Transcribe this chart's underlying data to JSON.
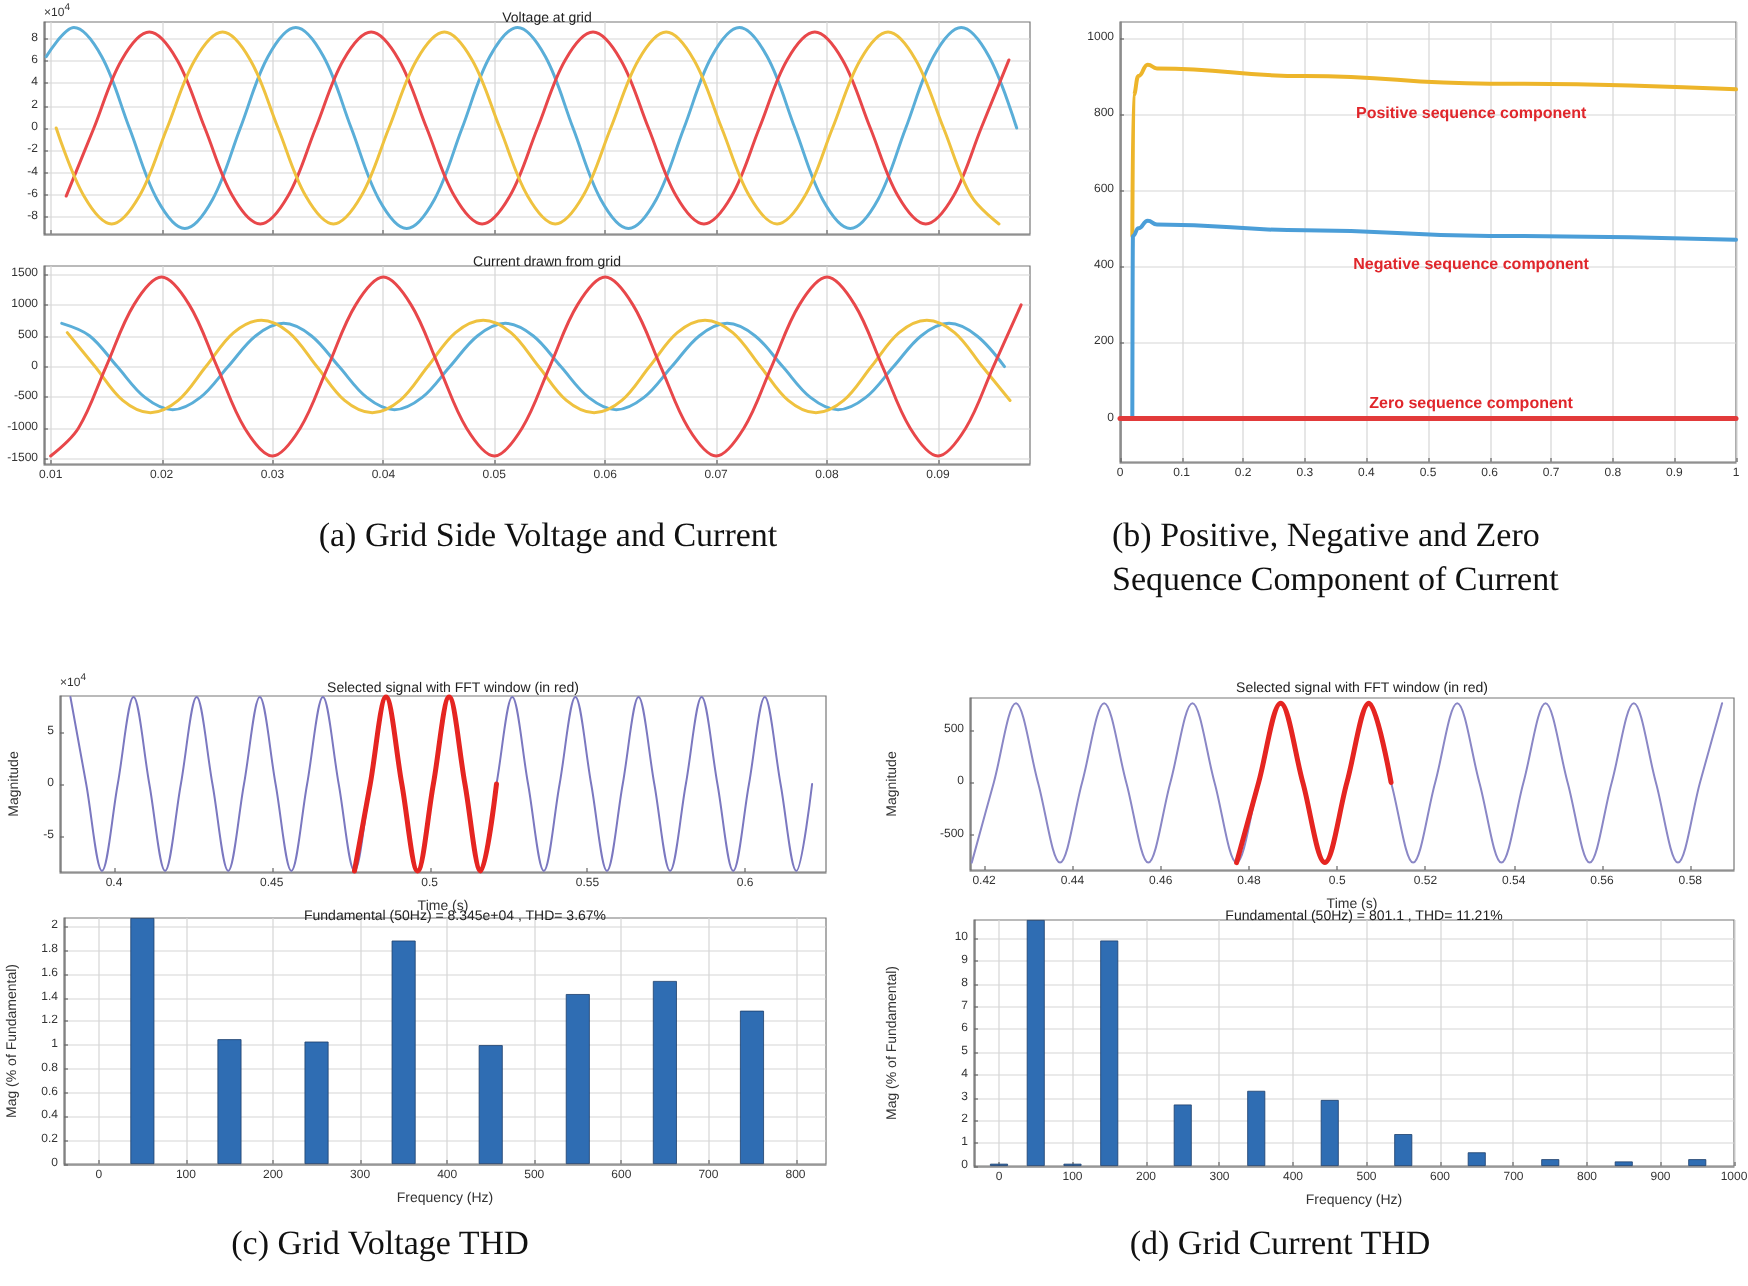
{
  "chart_data": [
    {
      "type": "line",
      "title": "Voltage at grid",
      "annotations": [
        "×10$^{4}$"
      ],
      "xlim": [
        0.0094,
        0.0983
      ],
      "ylim": [
        -9.5,
        9.5
      ],
      "xticks": [
        0.01,
        0.02,
        0.03,
        0.04,
        0.05,
        0.06,
        0.07,
        0.08,
        0.09
      ],
      "yticks": [
        -8,
        -6,
        -4,
        -2,
        0,
        2,
        4,
        6,
        8
      ],
      "grid": true,
      "tick_labels": "y",
      "marker": "none",
      "series": [
        {
          "color": "#5aaed8",
          "x": [
            0.0096,
            0.0121,
            0.0146,
            0.0171,
            0.0196,
            0.0221,
            0.0246,
            0.0271,
            0.0296,
            0.0321,
            0.0346,
            0.0371,
            0.0396,
            0.0421,
            0.0446,
            0.0471,
            0.0496,
            0.0521,
            0.0546,
            0.0571,
            0.0596,
            0.0621,
            0.0646,
            0.0671,
            0.0696,
            0.0721,
            0.0746,
            0.0771,
            0.0796,
            0.0821,
            0.0846,
            0.0871,
            0.0896,
            0.0921,
            0.0946,
            0.0971
          ],
          "values": [
            6.4,
            9,
            6.4,
            0,
            -6.4,
            -9,
            -6.4,
            0,
            6.4,
            9,
            6.4,
            0,
            -6.4,
            -9,
            -6.4,
            0,
            6.4,
            9,
            6.4,
            0,
            -6.4,
            -9,
            -6.4,
            0,
            6.4,
            9,
            6.4,
            0,
            -6.4,
            -9,
            -6.4,
            0,
            6.4,
            9,
            6.4,
            0
          ]
        },
        {
          "color": "#e8474a",
          "x": [
            0.0114,
            0.0139,
            0.0164,
            0.0189,
            0.0214,
            0.0239,
            0.0264,
            0.0289,
            0.0314,
            0.0339,
            0.0364,
            0.0389,
            0.0414,
            0.0439,
            0.0464,
            0.0489,
            0.0514,
            0.0539,
            0.0564,
            0.0589,
            0.0614,
            0.0639,
            0.0664,
            0.0689,
            0.0714,
            0.0739,
            0.0764,
            0.0789,
            0.0814,
            0.0839,
            0.0864,
            0.0889,
            0.0914,
            0.0939,
            0.0964
          ],
          "values": [
            -6.1,
            0,
            6.1,
            8.6,
            6.1,
            0,
            -6.1,
            -8.6,
            -6.1,
            0,
            6.1,
            8.6,
            6.1,
            0,
            -6.1,
            -8.6,
            -6.1,
            0,
            6.1,
            8.6,
            6.1,
            0,
            -6.1,
            -8.6,
            -6.1,
            0,
            6.1,
            8.6,
            6.1,
            0,
            -6.1,
            -8.6,
            -6.1,
            0,
            6.1
          ]
        },
        {
          "color": "#efc23f",
          "x": [
            0.0105,
            0.013,
            0.0155,
            0.018,
            0.0205,
            0.023,
            0.0255,
            0.028,
            0.0305,
            0.033,
            0.0355,
            0.038,
            0.0405,
            0.043,
            0.0455,
            0.048,
            0.0505,
            0.053,
            0.0555,
            0.058,
            0.0605,
            0.063,
            0.0655,
            0.068,
            0.0705,
            0.073,
            0.0755,
            0.078,
            0.0805,
            0.083,
            0.0855,
            0.088,
            0.0905,
            0.093,
            0.0955
          ],
          "values": [
            0,
            -6.1,
            -8.6,
            -6.1,
            0,
            6.1,
            8.6,
            6.1,
            0,
            -6.1,
            -8.6,
            -6.1,
            0,
            6.1,
            8.6,
            6.1,
            0,
            -6.1,
            -8.6,
            -6.1,
            0,
            6.1,
            8.6,
            6.1,
            0,
            -6.1,
            -8.6,
            -6.1,
            0,
            6.1,
            8.6,
            6.1,
            0,
            -6.1,
            -8.6
          ]
        }
      ]
    },
    {
      "type": "line",
      "title": "Current drawn from grid",
      "annotations": [
        "(a) Grid Side Voltage and Current"
      ],
      "xlim": [
        0.0094,
        0.0983
      ],
      "ylim": [
        -1580,
        1630
      ],
      "xticks": [
        0.01,
        0.02,
        0.03,
        0.04,
        0.05,
        0.06,
        0.07,
        0.08,
        0.09
      ],
      "yticks": [
        -1500,
        -1000,
        -500,
        0,
        500,
        1000,
        1500
      ],
      "grid": true,
      "marker": "none",
      "series": [
        {
          "color": "#5aaed8",
          "x": [
            0.011,
            0.0135,
            0.016,
            0.0185,
            0.021,
            0.0235,
            0.026,
            0.0285,
            0.031,
            0.0335,
            0.036,
            0.0385,
            0.041,
            0.0435,
            0.046,
            0.0485,
            0.051,
            0.0535,
            0.056,
            0.0585,
            0.061,
            0.0635,
            0.066,
            0.0685,
            0.071,
            0.0735,
            0.076,
            0.0785,
            0.081,
            0.0835,
            0.086,
            0.0885,
            0.091,
            0.0935,
            0.096
          ],
          "values": [
            700,
            500,
            0,
            -500,
            -700,
            -500,
            0,
            500,
            700,
            500,
            0,
            -500,
            -700,
            -500,
            0,
            500,
            700,
            500,
            0,
            -500,
            -700,
            -500,
            0,
            500,
            700,
            500,
            0,
            -500,
            -700,
            -500,
            0,
            500,
            700,
            500,
            0
          ]
        },
        {
          "color": "#efc23f",
          "x": [
            0.0115,
            0.014,
            0.0165,
            0.019,
            0.0215,
            0.024,
            0.0265,
            0.029,
            0.0315,
            0.034,
            0.0365,
            0.039,
            0.0415,
            0.044,
            0.0465,
            0.049,
            0.0515,
            0.054,
            0.0565,
            0.059,
            0.0615,
            0.064,
            0.0665,
            0.069,
            0.0715,
            0.074,
            0.0765,
            0.079,
            0.0815,
            0.084,
            0.0865,
            0.089,
            0.0915,
            0.094,
            0.0965
          ],
          "values": [
            550,
            0,
            -550,
            -750,
            -550,
            0,
            550,
            750,
            550,
            0,
            -550,
            -750,
            -550,
            0,
            550,
            750,
            550,
            0,
            -550,
            -750,
            -550,
            0,
            550,
            750,
            550,
            0,
            -550,
            -750,
            -550,
            0,
            550,
            750,
            550,
            0,
            -550
          ]
        },
        {
          "color": "#e8474a",
          "x": [
            0.01,
            0.0125,
            0.015,
            0.0175,
            0.02,
            0.0225,
            0.025,
            0.0275,
            0.03,
            0.0325,
            0.035,
            0.0375,
            0.04,
            0.0425,
            0.045,
            0.0475,
            0.05,
            0.0525,
            0.055,
            0.0575,
            0.06,
            0.0625,
            0.065,
            0.0675,
            0.07,
            0.0725,
            0.075,
            0.0775,
            0.08,
            0.0825,
            0.085,
            0.0875,
            0.09,
            0.0925,
            0.095,
            0.0975
          ],
          "values": [
            -1450,
            -1000,
            0,
            1000,
            1450,
            1000,
            0,
            -1000,
            -1450,
            -1000,
            0,
            1000,
            1450,
            1000,
            0,
            -1000,
            -1450,
            -1000,
            0,
            1000,
            1450,
            1000,
            0,
            -1000,
            -1450,
            -1000,
            0,
            1000,
            1450,
            1000,
            0,
            -1000,
            -1450,
            -1000,
            0,
            1000
          ]
        }
      ]
    },
    {
      "type": "line",
      "annotations": [
        "(b) Positive, Negative and Zero Sequence Component of Current"
      ],
      "xlim": [
        0,
        1
      ],
      "ylim": [
        -114,
        1042
      ],
      "xticks": [
        0,
        0.1,
        0.2,
        0.3,
        0.4,
        0.5,
        0.6,
        0.7,
        0.8,
        0.9,
        1
      ],
      "yticks": [
        0,
        200,
        400,
        600,
        800,
        1000
      ],
      "grid": true,
      "marker": "none",
      "series": [
        {
          "name": "Positive sequence component",
          "color": "#edb52a",
          "x": [
            0.02,
            0.022,
            0.03,
            0.045,
            0.06,
            0.3,
            0.6,
            1
          ],
          "values": [
            480,
            850,
            900,
            930,
            920,
            900,
            880,
            865
          ]
        },
        {
          "name": "Negative sequence component",
          "color": "#4b9ed8",
          "x": [
            0.02,
            0.021,
            0.03,
            0.045,
            0.06,
            0.3,
            0.6,
            1
          ],
          "values": [
            0,
            480,
            500,
            520,
            510,
            495,
            480,
            470
          ]
        },
        {
          "name": "Zero sequence component",
          "color": "#e23a3a",
          "x": [
            0,
            1
          ],
          "values": [
            0,
            0
          ]
        }
      ]
    },
    {
      "type": "line",
      "title": "Selected signal with FFT window (in red)",
      "xlabel": "Time (s)",
      "ylabel": "Magnitude",
      "annotations": [
        "×10$^{4}$"
      ],
      "xlim": [
        0.3829,
        0.6256
      ],
      "ylim": [
        -8.4,
        8.4
      ],
      "xticks": [
        0.4,
        0.45,
        0.5,
        0.55,
        0.6
      ],
      "yticks": [
        -5,
        0,
        5
      ],
      "marker": "none",
      "series": [
        {
          "color": "#7b78c0",
          "x": [
            0.3862,
            0.3912,
            0.3962,
            0.4012,
            0.4062,
            0.4112,
            0.4162,
            0.4212,
            0.4262,
            0.4312,
            0.4362,
            0.4412,
            0.4462,
            0.4512,
            0.4562,
            0.4612,
            0.4662,
            0.4712,
            0.4762,
            0.4812,
            0.4862,
            0.4912,
            0.4962,
            0.5012,
            0.5062,
            0.5112,
            0.5162,
            0.5212,
            0.5262,
            0.5312,
            0.5362,
            0.5412,
            0.5462,
            0.5512,
            0.5562,
            0.5612,
            0.5662,
            0.5712,
            0.5762,
            0.5812,
            0.5862,
            0.5912,
            0.5962,
            0.6012,
            0.6062,
            0.6112,
            0.6162,
            0.6212
          ],
          "values": [
            8.3,
            0,
            -8.3,
            0,
            8.3,
            0,
            -8.3,
            0,
            8.3,
            0,
            -8.3,
            0,
            8.3,
            0,
            -8.3,
            0,
            8.3,
            0,
            -8.3,
            0,
            8.3,
            0,
            -8.3,
            0,
            8.3,
            0,
            -8.3,
            0,
            8.3,
            0,
            -8.3,
            0,
            8.3,
            0,
            -8.3,
            0,
            8.3,
            0,
            -8.3,
            0,
            8.3,
            0,
            -8.3,
            0,
            8.3,
            0,
            -8.3,
            0
          ]
        },
        {
          "color": "#e52521",
          "x": [
            0.4762,
            0.4812,
            0.4862,
            0.4912,
            0.4962,
            0.5012,
            0.5062,
            0.5112,
            0.5162,
            0.5212
          ],
          "values": [
            -8.3,
            0,
            8.3,
            0,
            -8.3,
            0,
            8.3,
            0,
            -8.3,
            0
          ]
        }
      ]
    },
    {
      "type": "bar",
      "title": "Fundamental (50Hz) = 8.345e+04 , THD= 3.67%",
      "xlabel": "Frequency (Hz)",
      "ylabel": "Mag (% of Fundamental)",
      "annotations": [
        "(c) Grid Voltage THD"
      ],
      "color": "#2f6db3",
      "grid": true,
      "xlim": [
        -40,
        835
      ],
      "ylim": [
        0,
        2.07
      ],
      "xticks": [
        0,
        100,
        200,
        300,
        400,
        500,
        600,
        700,
        800
      ],
      "yticks": [
        0,
        0.2,
        0.4,
        0.6,
        0.8,
        1,
        1.2,
        1.4,
        1.6,
        1.8,
        2
      ],
      "x": [
        50,
        150,
        250,
        350,
        450,
        550,
        650,
        750
      ],
      "values": [
        2.07,
        1.05,
        1.03,
        1.88,
        1.0,
        1.43,
        1.54,
        1.29
      ]
    },
    {
      "type": "line",
      "title": "Selected signal with FFT window (in red)",
      "xlabel": "Time (s)",
      "ylabel": "Magnitude",
      "xlim": [
        0.4168,
        0.5899
      ],
      "ylim": [
        -830,
        800
      ],
      "xticks": [
        0.42,
        0.44,
        0.46,
        0.48,
        0.5,
        0.52,
        0.54,
        0.56,
        0.58
      ],
      "yticks": [
        -500,
        0,
        500
      ],
      "marker": "none",
      "series": [
        {
          "color": "#8a87c6",
          "x": [
            0.4172,
            0.4222,
            0.4272,
            0.4322,
            0.4372,
            0.4422,
            0.4472,
            0.4522,
            0.4572,
            0.4622,
            0.4672,
            0.4722,
            0.4772,
            0.4822,
            0.4872,
            0.4922,
            0.4972,
            0.5022,
            0.5072,
            0.5122,
            0.5172,
            0.5222,
            0.5272,
            0.5322,
            0.5372,
            0.5422,
            0.5472,
            0.5522,
            0.5572,
            0.5622,
            0.5672,
            0.5722,
            0.5772,
            0.5822,
            0.5872
          ],
          "values": [
            -760,
            0,
            750,
            0,
            -760,
            0,
            750,
            0,
            -760,
            0,
            750,
            0,
            -760,
            0,
            750,
            0,
            -760,
            0,
            750,
            0,
            -760,
            0,
            750,
            0,
            -760,
            0,
            750,
            0,
            -760,
            0,
            750,
            0,
            -760,
            0,
            750
          ]
        },
        {
          "color": "#e52521",
          "x": [
            0.4772,
            0.4822,
            0.4872,
            0.4922,
            0.4972,
            0.5022,
            0.5072,
            0.5122
          ],
          "values": [
            -760,
            0,
            750,
            0,
            -760,
            0,
            750,
            0
          ]
        }
      ]
    },
    {
      "type": "bar",
      "title": "Fundamental (50Hz) = 801.1 , THD= 11.21%",
      "xlabel": "Frequency (Hz)",
      "ylabel": "Mag (% of Fundamental)",
      "annotations": [
        "(d) Grid Current THD"
      ],
      "color": "#2f6db3",
      "grid": true,
      "xlim": [
        -34,
        1000
      ],
      "ylim": [
        0,
        10.8
      ],
      "xticks": [
        0,
        100,
        200,
        300,
        400,
        500,
        600,
        700,
        800,
        900,
        1000
      ],
      "yticks": [
        0,
        1,
        2,
        3,
        4,
        5,
        6,
        7,
        8,
        9,
        10
      ],
      "x": [
        0,
        50,
        100,
        150,
        250,
        350,
        450,
        550,
        650,
        750,
        850,
        950
      ],
      "values": [
        0.1,
        10.8,
        0.1,
        9.9,
        2.7,
        3.3,
        2.9,
        1.4,
        0.6,
        0.3,
        0.2,
        0.3
      ]
    }
  ]
}
